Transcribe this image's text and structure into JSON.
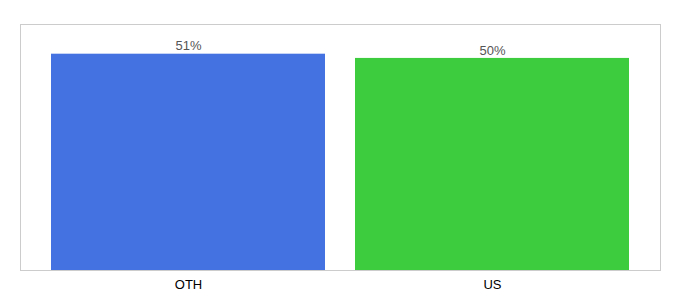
{
  "chart_data": {
    "type": "bar",
    "categories": [
      "OTH",
      "US"
    ],
    "values": [
      51,
      50
    ],
    "value_labels": [
      "51%",
      "50%"
    ],
    "data_labels": true,
    "colors": [
      "#4472e0",
      "#3dcc3d"
    ],
    "ylim": [
      0,
      58
    ],
    "tick_labels": "x"
  }
}
